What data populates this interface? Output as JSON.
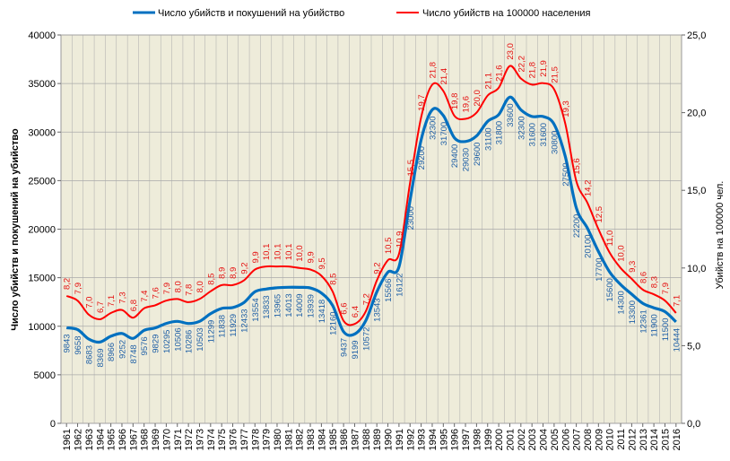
{
  "colors": {
    "blue": "#0070c0",
    "red": "#ff0000",
    "plot_bg": "#eeecda",
    "grid": "#aaaaaa"
  },
  "chart_data": {
    "type": "line",
    "x": [
      1961,
      1962,
      1963,
      1964,
      1965,
      1966,
      1967,
      1968,
      1969,
      1970,
      1971,
      1972,
      1973,
      1974,
      1975,
      1976,
      1977,
      1978,
      1979,
      1980,
      1981,
      1982,
      1983,
      1984,
      1985,
      1986,
      1987,
      1988,
      1989,
      1990,
      1991,
      1992,
      1993,
      1994,
      1995,
      1996,
      1997,
      1998,
      1999,
      2000,
      2001,
      2002,
      2003,
      2004,
      2005,
      2006,
      2007,
      2008,
      2009,
      2010,
      2011,
      2012,
      2013,
      2014,
      2015,
      2016
    ],
    "y_left_label": "Число убийств и покушений на убийство",
    "y_right_label": "Убийств на 100000 чел.",
    "y_left_ticks": [
      "0",
      "5000",
      "10000",
      "15000",
      "20000",
      "25000",
      "30000",
      "35000",
      "40000"
    ],
    "y_right_ticks": [
      "0,0",
      "5,0",
      "10,0",
      "15,0",
      "20,0",
      "25,0"
    ],
    "ylim_left": [
      0,
      40000
    ],
    "ylim_right": [
      0,
      25
    ],
    "grid": true,
    "legend_position": "top",
    "series": [
      {
        "name": "Число убийств и покушений  на убийство",
        "axis": "left",
        "values": [
          9843,
          9658,
          8683,
          8369,
          8966,
          9252,
          8748,
          9576,
          9829,
          10295,
          10506,
          10286,
          10503,
          11299,
          11838,
          11929,
          12433,
          13554,
          13833,
          13965,
          14013,
          14009,
          13939,
          13418,
          12160,
          9437,
          9199,
          10572,
          13543,
          15566,
          16122,
          23000,
          29200,
          32300,
          31700,
          29400,
          29030,
          29600,
          31100,
          31800,
          33600,
          32300,
          31600,
          31600,
          30800,
          27500,
          22200,
          20100,
          17700,
          15600,
          14300,
          13300,
          12361,
          11900,
          11500,
          10444
        ],
        "labels": [
          "9843",
          "9658",
          "8683",
          "8369",
          "8966",
          "9252",
          "8748",
          "9576",
          "9829",
          "10295",
          "10506",
          "10286",
          "10503",
          "11299",
          "11838",
          "11929",
          "12433",
          "13554",
          "13833",
          "13965",
          "14013",
          "14009",
          "13939",
          "13418",
          "12160",
          "9437",
          "9199",
          "10572",
          "13543",
          "15566",
          "16122",
          "23000",
          "29200",
          "32300",
          "31700",
          "29400",
          "29030",
          "29600",
          "31100",
          "31800",
          "33600",
          "32300",
          "31600",
          "31600",
          "30800",
          "27500",
          "22200",
          "20100",
          "17700",
          "15600",
          "14300",
          "13300",
          "12361",
          "11900",
          "11500",
          "10444"
        ]
      },
      {
        "name": "Число убийств на 100000 населения",
        "axis": "right",
        "values": [
          8.2,
          7.9,
          7.0,
          6.7,
          7.1,
          7.3,
          6.8,
          7.4,
          7.6,
          7.9,
          8.0,
          7.8,
          8.0,
          8.5,
          8.9,
          8.9,
          9.2,
          9.9,
          10.1,
          10.1,
          10.1,
          10.0,
          9.9,
          9.5,
          8.5,
          6.6,
          6.4,
          7.2,
          9.2,
          10.5,
          10.9,
          15.5,
          19.7,
          21.8,
          21.4,
          19.8,
          19.6,
          20.0,
          21.1,
          21.6,
          23.0,
          22.2,
          21.8,
          21.9,
          21.5,
          19.3,
          15.6,
          14.2,
          12.5,
          11.0,
          10.0,
          9.3,
          8.6,
          8.3,
          7.9,
          7.1
        ],
        "labels": [
          "8,2",
          "7,9",
          "7,0",
          "6,7",
          "7,1",
          "7,3",
          "6,8",
          "7,4",
          "7,6",
          "7,9",
          "8,0",
          "7,8",
          "8,0",
          "8,5",
          "8,9",
          "8,9",
          "9,2",
          "9,9",
          "10,1",
          "10,1",
          "10,1",
          "10,0",
          "9,9",
          "9,5",
          "8,5",
          "6,6",
          "6,4",
          "7,2",
          "9,2",
          "10,5",
          "10,9",
          "15,5",
          "19,7",
          "21,8",
          "21,4",
          "19,8",
          "19,6",
          "20,0",
          "21,1",
          "21,6",
          "23,0",
          "22,2",
          "21,8",
          "21,9",
          "21,5",
          "19,3",
          "15,6",
          "14,2",
          "12,5",
          "11,0",
          "10,0",
          "9,3",
          "8,6",
          "8,3",
          "7,9",
          "7,1"
        ]
      }
    ]
  }
}
